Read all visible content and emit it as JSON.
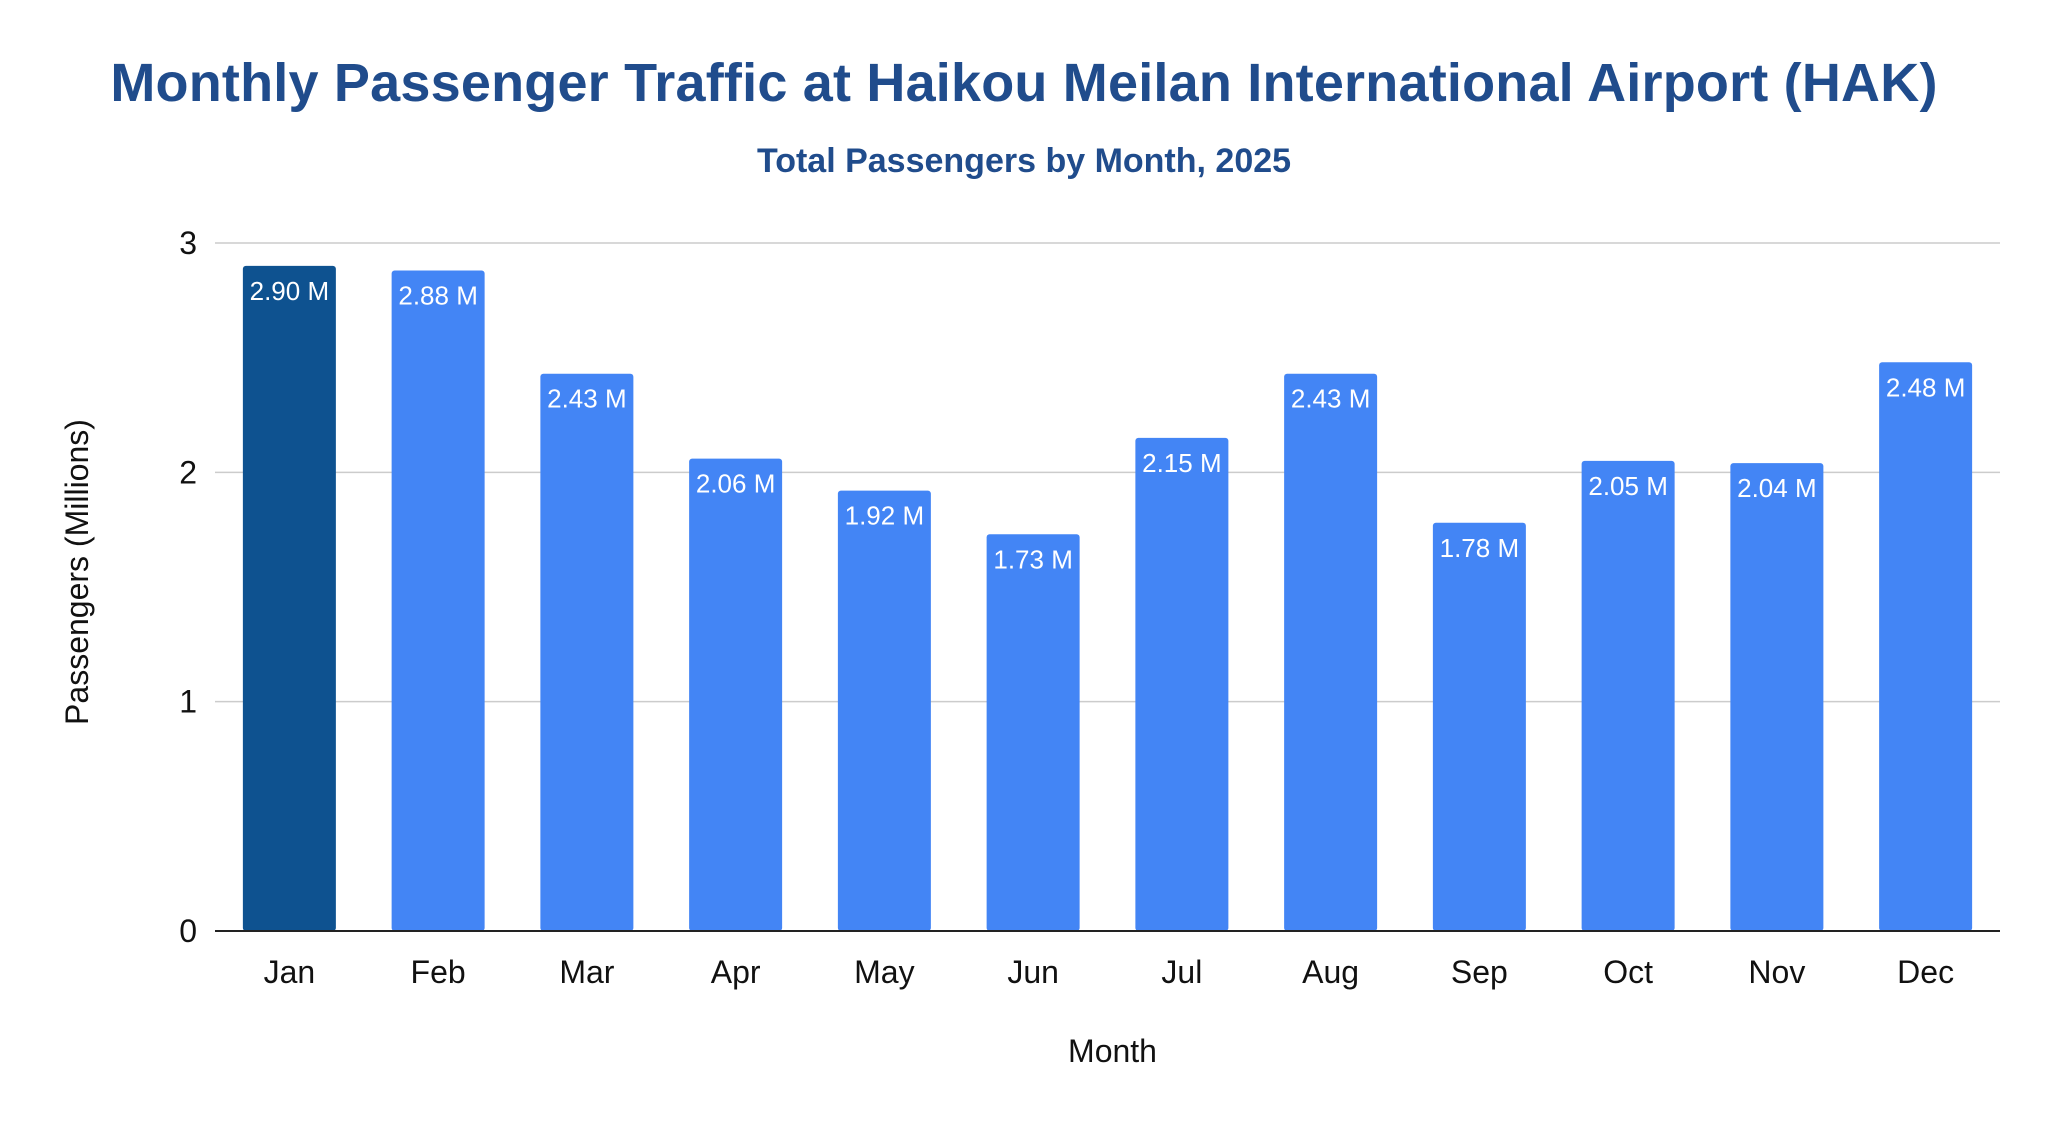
{
  "chart_data": {
    "type": "bar",
    "title": "Monthly Passenger Traffic at Haikou Meilan International Airport (HAK)",
    "subtitle": "Total Passengers by Month, 2025",
    "xlabel": "Month",
    "ylabel": "Passengers (Millions)",
    "ylim": [
      0,
      3
    ],
    "yticks": [
      0,
      1,
      2,
      3
    ],
    "grid": true,
    "categories": [
      "Jan",
      "Feb",
      "Mar",
      "Apr",
      "May",
      "Jun",
      "Jul",
      "Aug",
      "Sep",
      "Oct",
      "Nov",
      "Dec"
    ],
    "values": [
      2.9,
      2.88,
      2.43,
      2.06,
      1.92,
      1.73,
      2.15,
      2.43,
      1.78,
      2.05,
      2.04,
      2.48
    ],
    "data_labels": [
      "2.90 M",
      "2.88 M",
      "2.43 M",
      "2.06 M",
      "1.92 M",
      "1.73 M",
      "2.15 M",
      "2.43 M",
      "1.78 M",
      "2.05 M",
      "2.04 M",
      "2.48 M"
    ],
    "colors": {
      "bar": "#4385F5",
      "highlight_bar": "#0E5290",
      "title": "#204C8C",
      "grid": "#CCCCCC",
      "axis": "#222222"
    },
    "highlight_category": "Jan"
  }
}
